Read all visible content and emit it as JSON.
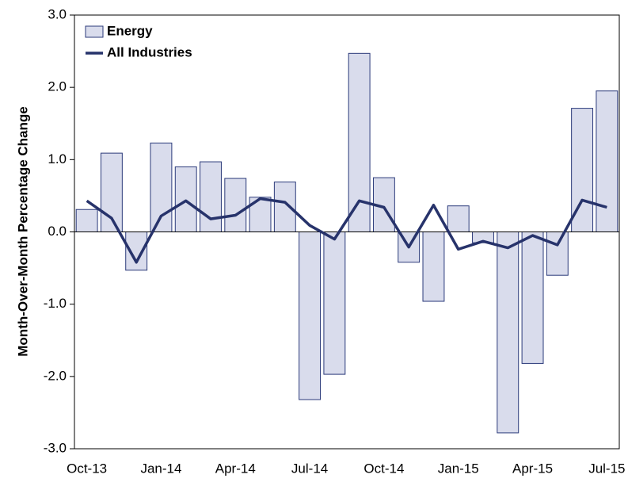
{
  "chart_data": {
    "type": "bar_line",
    "y_label": "Month-Over-Month Percentage Change",
    "categories": [
      "Oct-13",
      null,
      null,
      "Jan-14",
      null,
      null,
      "Apr-14",
      null,
      null,
      "Jul-14",
      null,
      null,
      "Oct-14",
      null,
      null,
      "Jan-15",
      null,
      null,
      "Apr-15",
      null,
      null,
      "Jul-15"
    ],
    "series": [
      {
        "name": "Energy",
        "type": "bar",
        "color": "#d9dcec",
        "edge": "#2b3a7a",
        "values": [
          0.31,
          1.09,
          -0.53,
          1.23,
          0.9,
          0.97,
          0.74,
          0.48,
          0.69,
          -2.32,
          -1.97,
          2.47,
          0.75,
          -0.42,
          -0.96,
          0.36,
          -0.15,
          -2.78,
          -1.82,
          -0.6,
          1.71,
          1.95
        ]
      },
      {
        "name": "All Industries",
        "type": "line",
        "color": "#27336b",
        "values": [
          0.43,
          0.19,
          -0.42,
          0.22,
          0.43,
          0.18,
          0.23,
          0.46,
          0.41,
          0.09,
          -0.1,
          0.43,
          0.34,
          -0.21,
          0.37,
          -0.24,
          -0.13,
          -0.22,
          -0.05,
          -0.18,
          0.44,
          0.34
        ]
      }
    ],
    "ylim": [
      -3,
      3
    ],
    "yticks": [
      {
        "value": -3,
        "label": "-3.0"
      },
      {
        "value": -2,
        "label": "-2.0"
      },
      {
        "value": -1,
        "label": "-1.0"
      },
      {
        "value": 0,
        "label": "0.0"
      },
      {
        "value": 1,
        "label": "1.0"
      },
      {
        "value": 2,
        "label": "2.0"
      },
      {
        "value": 3,
        "label": "3.0"
      }
    ],
    "legend": "top-left"
  }
}
